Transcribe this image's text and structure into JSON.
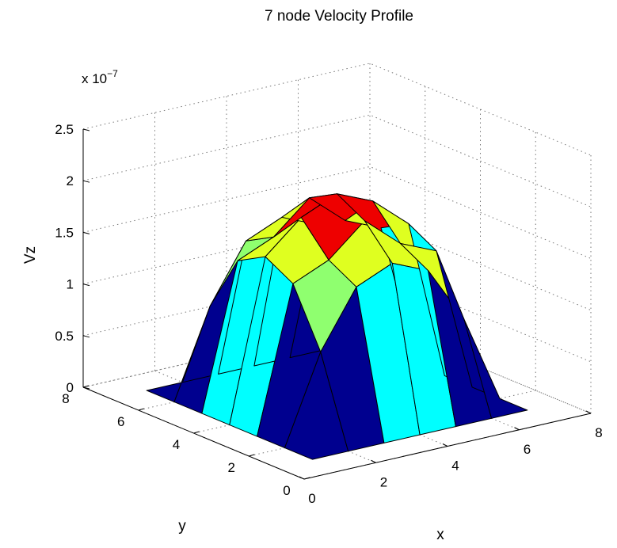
{
  "chart_data": {
    "type": "surface",
    "title": "7 node Velocity Profile",
    "xlabel": "x",
    "ylabel": "y",
    "zlabel": "Vz",
    "z_exponent_label": "x 10",
    "z_exponent_power": "−7",
    "xlim": [
      0,
      8
    ],
    "ylim": [
      0,
      8
    ],
    "zlim": [
      0,
      2.5
    ],
    "x_ticks": [
      0,
      2,
      4,
      6,
      8
    ],
    "y_ticks": [
      0,
      2,
      4,
      6,
      8
    ],
    "z_ticks": [
      0,
      0.5,
      1,
      1.5,
      2,
      2.5
    ],
    "z_tick_labels": [
      "0",
      "0.5",
      "1",
      "1.5",
      "2",
      "2.5"
    ],
    "x": [
      1,
      2,
      3,
      4,
      5,
      6,
      7
    ],
    "y": [
      1,
      2,
      3,
      4,
      5,
      6,
      7
    ],
    "z": [
      [
        0,
        0,
        0,
        0,
        0,
        0,
        0
      ],
      [
        0,
        0.85,
        1.4,
        1.55,
        1.4,
        0.85,
        0
      ],
      [
        0,
        1.4,
        1.55,
        1.85,
        1.55,
        1.4,
        0
      ],
      [
        0,
        1.55,
        1.85,
        2.0,
        1.85,
        1.55,
        0
      ],
      [
        0,
        1.4,
        1.55,
        1.85,
        1.55,
        1.4,
        0
      ],
      [
        0,
        0.85,
        1.4,
        1.55,
        1.4,
        0.85,
        0
      ],
      [
        0,
        0,
        0,
        0,
        0,
        0,
        0
      ]
    ],
    "colormap": "jet",
    "colors": {
      "band_0": "#00008f",
      "band_1": "#00ffff",
      "band_2": "#8fff6f",
      "band_3": "#dfff20",
      "band_4": "#ff4500",
      "band_5": "#ee0000"
    },
    "grid": true,
    "legend": "none"
  }
}
